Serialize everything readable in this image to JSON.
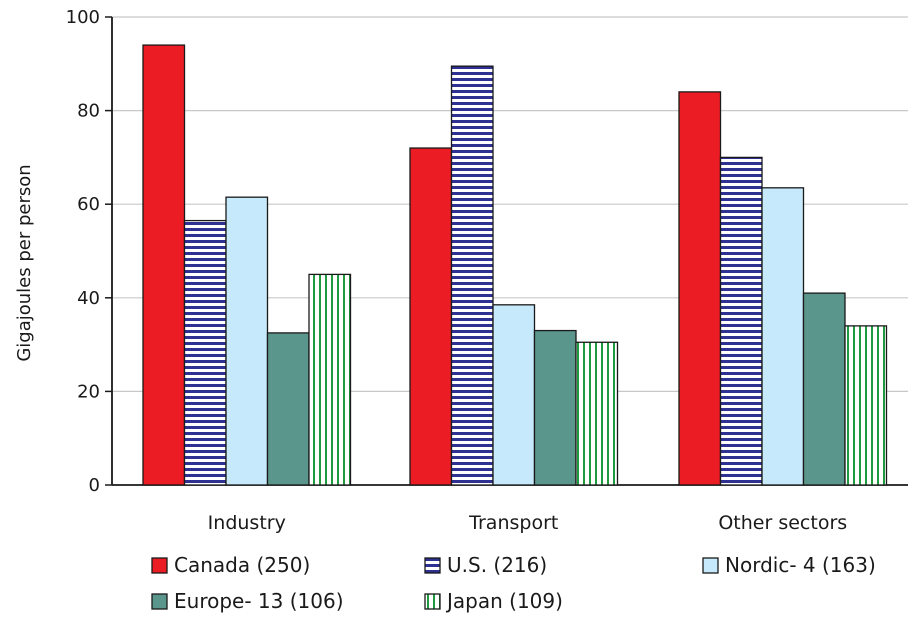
{
  "chart_data": {
    "type": "bar",
    "xlabel": "",
    "ylabel": "Gigajoules per person",
    "ylim": [
      0,
      100
    ],
    "yticks": [
      0,
      20,
      40,
      60,
      80,
      100
    ],
    "categories": [
      "Industry",
      "Transport",
      "Other sectors"
    ],
    "series": [
      {
        "name": "Canada (250)",
        "values": [
          94,
          72,
          84
        ],
        "color": "#ec1c24",
        "pattern": "solid"
      },
      {
        "name": "U.S. (216)",
        "values": [
          56.5,
          89.5,
          70
        ],
        "color": "#2e3192",
        "pattern": "horizontal-stripes"
      },
      {
        "name": "Nordic- 4 (163)",
        "values": [
          61.5,
          38.5,
          63.5
        ],
        "color": "#c6e9fb",
        "pattern": "solid"
      },
      {
        "name": "Europe- 13 (106)",
        "values": [
          32.5,
          33,
          41
        ],
        "color": "#5b968c",
        "pattern": "solid"
      },
      {
        "name": "Japan (109)",
        "values": [
          45,
          30.5,
          34
        ],
        "color": "#1f9a3f",
        "pattern": "vertical-stripes"
      }
    ],
    "grid": true,
    "legend_position": "bottom"
  }
}
